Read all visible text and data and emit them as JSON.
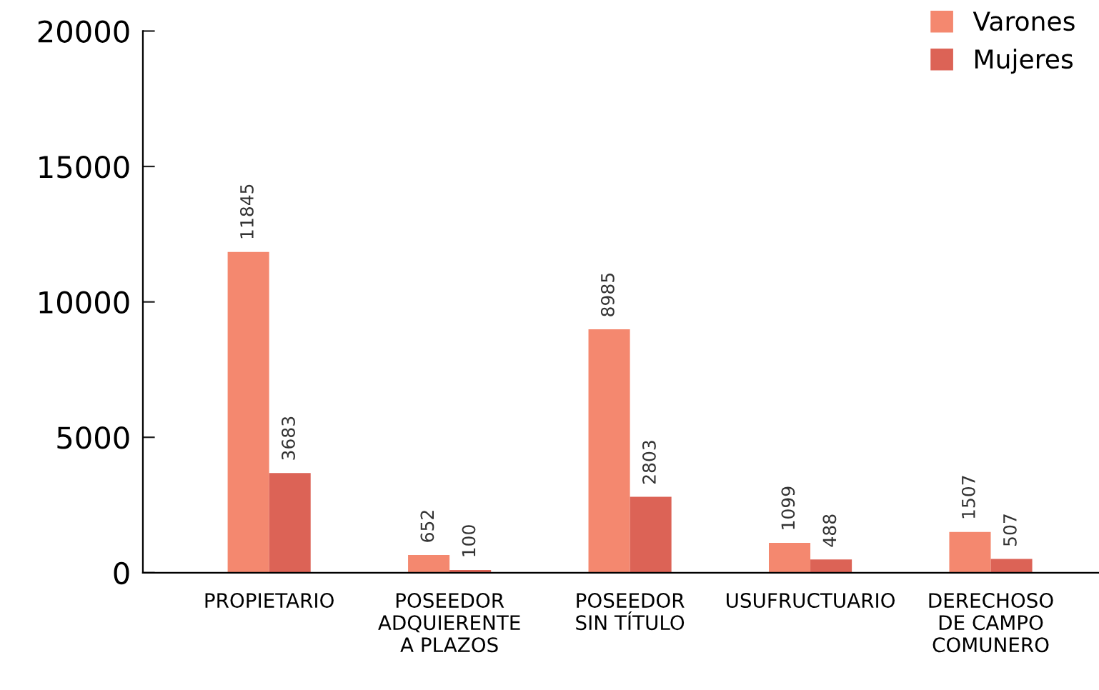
{
  "chart_data": {
    "type": "bar",
    "categories": [
      "PROPIETARIO",
      "POSEEDOR\nADQUIERENTE\nA PLAZOS",
      "POSEEDOR\nSIN TÍTULO",
      "USUFRUCTUARIO",
      "DERECHOSO\nDE CAMPO\nCOMUNERO"
    ],
    "series": [
      {
        "name": "Varones",
        "color": "#f4886f",
        "values": [
          11845,
          652,
          8985,
          1099,
          1507
        ]
      },
      {
        "name": "Mujeres",
        "color": "#dc6356",
        "values": [
          3683,
          100,
          2803,
          488,
          507
        ]
      }
    ],
    "ylim": [
      0,
      20000
    ],
    "yticks": [
      0,
      5000,
      10000,
      15000,
      20000
    ],
    "data_labels": true,
    "legend": "top right",
    "grid": false
  }
}
